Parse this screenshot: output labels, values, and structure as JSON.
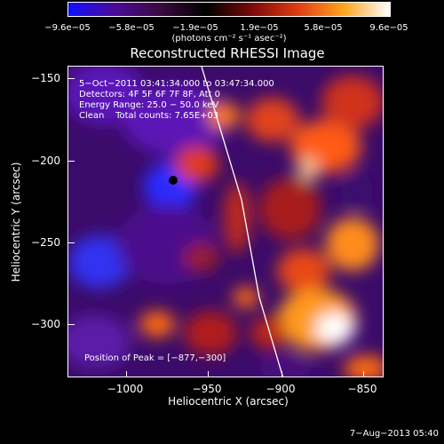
{
  "colorbar": {
    "ticks": [
      "−9.6e−05",
      "−5.8e−05",
      "−1.9e−05",
      "1.9e−05",
      "5.8e−05",
      "9.6e−05"
    ],
    "unit_label": "(photons cm⁻² s⁻¹ asec⁻²)",
    "gradient_colors": [
      "#1010ff",
      "#4b0a9a",
      "#3a0a40",
      "#000000",
      "#7a0a0a",
      "#e13b12",
      "#ffa51e",
      "#ffffff"
    ]
  },
  "title": "Reconstructed RHESSI Image",
  "annotations": {
    "time_range": "5−Oct−2011 03:41:34.000 to 03:47:34.000",
    "detectors": "Detectors: 4F 5F 6F 7F 8F, Att 0",
    "energy": "Energy Range: 25.0 − 50.0 keV",
    "clean": "Clean    Total counts: 7.65E+03",
    "peak": "Position of Peak = [−877,−300]"
  },
  "axes": {
    "xlabel": "Heliocentric X (arcsec)",
    "ylabel": "Heliocentric Y (arcsec)",
    "xticks": [
      "−1000",
      "−950",
      "−900",
      "−850"
    ],
    "yticks": [
      "−150",
      "−200",
      "−250",
      "−300"
    ]
  },
  "footer": "7−Aug−2013 05:40"
}
